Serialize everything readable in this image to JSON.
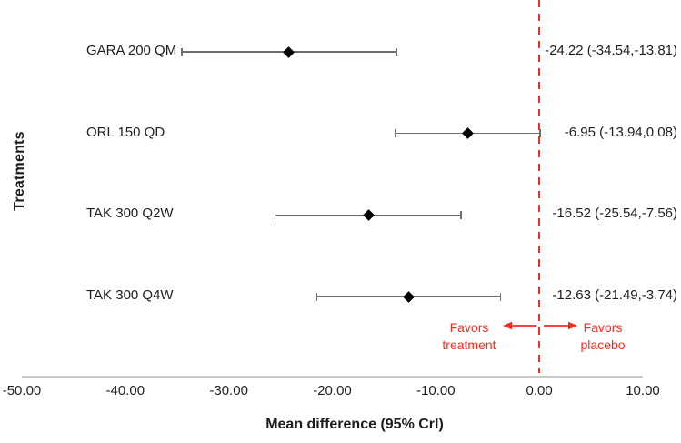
{
  "chart_data": {
    "type": "forest",
    "title": "",
    "xlabel": "Mean difference (95% CrI)",
    "ylabel": "Treatments",
    "xlim": [
      -50,
      10
    ],
    "xtick_values": [
      -50,
      -40,
      -30,
      -20,
      -10,
      0,
      10
    ],
    "xtick_labels": [
      "-50.00",
      "-40.00",
      "-30.00",
      "-20.00",
      "-10.00",
      "0.00",
      "10.00"
    ],
    "grid": false,
    "legend": false,
    "reference_line_x": 0,
    "rows": [
      {
        "treatment": "GARA 200 QM",
        "mean": -24.22,
        "lower": -34.54,
        "upper": -13.81,
        "estimate_label": "-24.22 (-34.54,-13.81)"
      },
      {
        "treatment": "ORL 150 QD",
        "mean": -6.95,
        "lower": -13.94,
        "upper": 0.08,
        "estimate_label": "-6.95 (-13.94,0.08)"
      },
      {
        "treatment": "TAK 300 Q2W",
        "mean": -16.52,
        "lower": -25.54,
        "upper": -7.56,
        "estimate_label": "-16.52 (-25.54,-7.56)"
      },
      {
        "treatment": "TAK 300 Q4W",
        "mean": -12.63,
        "lower": -21.49,
        "upper": -3.74,
        "estimate_label": "-12.63 (-21.49,-3.74)"
      }
    ],
    "annotations": {
      "favors_treatment": {
        "line1": "Favors",
        "line2": "treatment"
      },
      "favors_placebo": {
        "line1": "Favors",
        "line2": "placebo"
      }
    },
    "colors": {
      "reference_line": "#ee2e24",
      "annotation_text": "#ee2e24",
      "marker": "#000000",
      "error_bar": "#6e6e6e",
      "axis_line": "#c9c9c9",
      "text": "#1f1f1f"
    }
  }
}
